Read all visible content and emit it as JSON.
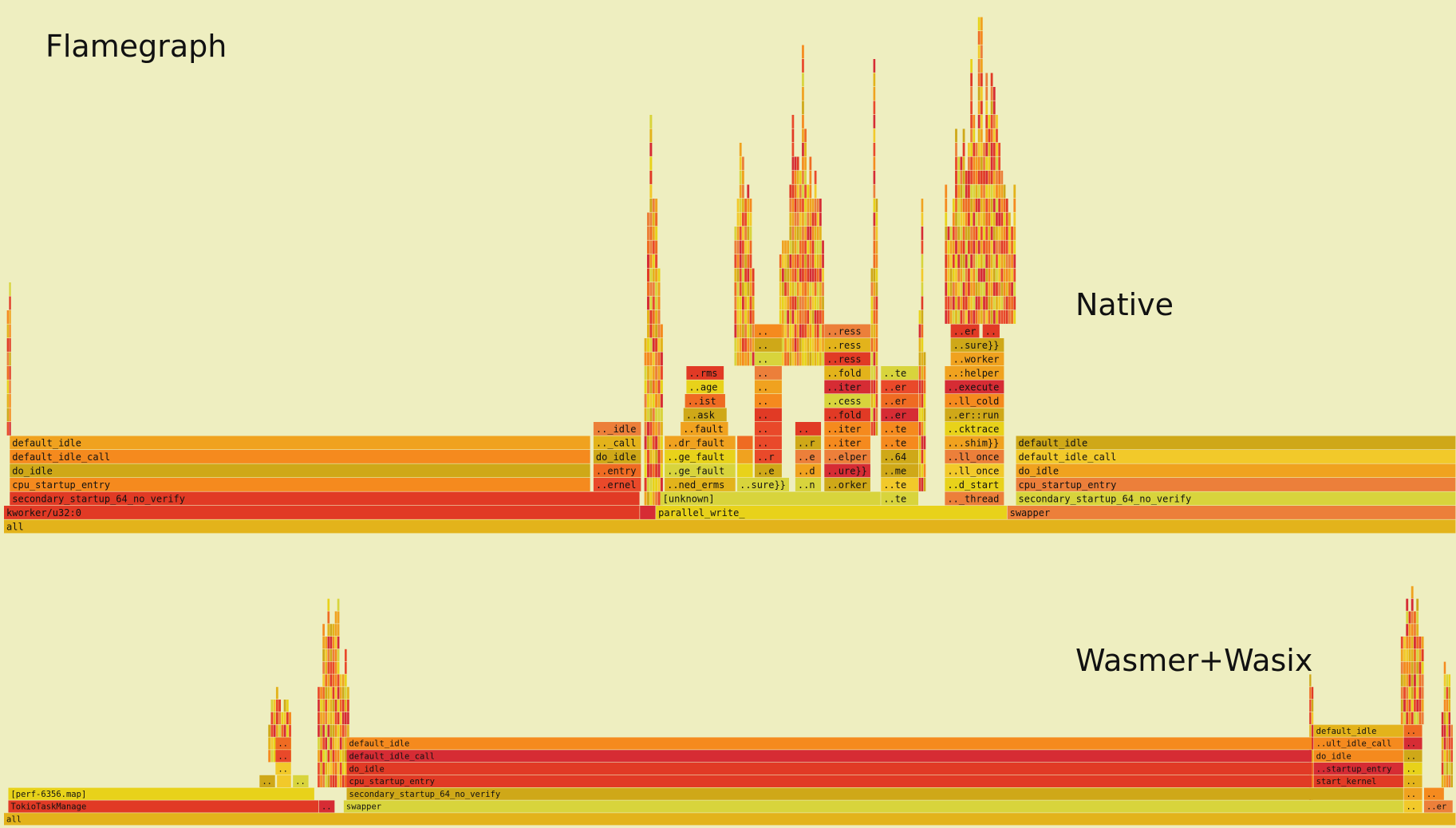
{
  "title": "Flamegraph",
  "chart_data": [
    {
      "type": "flamegraph",
      "name": "Native",
      "notes": "Frame widths are estimated fractions of total samples (0-1); depth 0 = root 'all'. Labels copied exactly as shown (truncated with '..').",
      "frames": [
        {
          "label": "all",
          "depth": 0,
          "start": 0.0,
          "width": 1.0
        },
        {
          "label": "kworker/u32:0",
          "depth": 1,
          "start": 0.0,
          "width": 0.438
        },
        {
          "label": "..",
          "depth": 1,
          "start": 0.438,
          "width": 0.011
        },
        {
          "label": "parallel_write_",
          "depth": 1,
          "start": 0.449,
          "width": 0.242
        },
        {
          "label": "swapper",
          "depth": 1,
          "start": 0.691,
          "width": 0.309
        },
        {
          "label": "secondary_startup_64_no_verify",
          "depth": 2,
          "start": 0.004,
          "width": 0.434
        },
        {
          "label": "[unknown]",
          "depth": 2,
          "start": 0.452,
          "width": 0.152
        },
        {
          "label": "..te",
          "depth": 2,
          "start": 0.604,
          "width": 0.026
        },
        {
          "label": ".._thread",
          "depth": 2,
          "start": 0.648,
          "width": 0.041
        },
        {
          "label": "secondary_startup_64_no_verify",
          "depth": 2,
          "start": 0.697,
          "width": 0.303
        },
        {
          "label": "cpu_startup_entry",
          "depth": 3,
          "start": 0.004,
          "width": 0.4
        },
        {
          "label": "..ernel",
          "depth": 3,
          "start": 0.406,
          "width": 0.033
        },
        {
          "label": "..ned_erms",
          "depth": 3,
          "start": 0.455,
          "width": 0.049
        },
        {
          "label": "..sure}}",
          "depth": 3,
          "start": 0.505,
          "width": 0.036
        },
        {
          "label": "..n",
          "depth": 3,
          "start": 0.545,
          "width": 0.018
        },
        {
          "label": "..orker",
          "depth": 3,
          "start": 0.565,
          "width": 0.032
        },
        {
          "label": "..te",
          "depth": 3,
          "start": 0.604,
          "width": 0.026
        },
        {
          "label": "..d_start",
          "depth": 3,
          "start": 0.648,
          "width": 0.041
        },
        {
          "label": "cpu_startup_entry",
          "depth": 3,
          "start": 0.697,
          "width": 0.303
        },
        {
          "label": "do_idle",
          "depth": 4,
          "start": 0.004,
          "width": 0.4
        },
        {
          "label": "..entry",
          "depth": 4,
          "start": 0.406,
          "width": 0.033
        },
        {
          "label": "..ge_fault",
          "depth": 4,
          "start": 0.455,
          "width": 0.049
        },
        {
          "label": "..",
          "depth": 4,
          "start": 0.505,
          "width": 0.011
        },
        {
          "label": "..e",
          "depth": 4,
          "start": 0.517,
          "width": 0.019
        },
        {
          "label": "..d",
          "depth": 4,
          "start": 0.545,
          "width": 0.018
        },
        {
          "label": "..ure}}",
          "depth": 4,
          "start": 0.565,
          "width": 0.032
        },
        {
          "label": "..me",
          "depth": 4,
          "start": 0.604,
          "width": 0.026
        },
        {
          "label": "..ll_once",
          "depth": 4,
          "start": 0.648,
          "width": 0.041
        },
        {
          "label": "do_idle",
          "depth": 4,
          "start": 0.697,
          "width": 0.303
        },
        {
          "label": "default_idle_call",
          "depth": 5,
          "start": 0.004,
          "width": 0.4
        },
        {
          "label": "do_idle",
          "depth": 5,
          "start": 0.406,
          "width": 0.033
        },
        {
          "label": "..ge_fault",
          "depth": 5,
          "start": 0.455,
          "width": 0.049
        },
        {
          "label": "..",
          "depth": 5,
          "start": 0.505,
          "width": 0.011
        },
        {
          "label": "..r",
          "depth": 5,
          "start": 0.517,
          "width": 0.019
        },
        {
          "label": "..e",
          "depth": 5,
          "start": 0.545,
          "width": 0.018
        },
        {
          "label": "..elper",
          "depth": 5,
          "start": 0.565,
          "width": 0.032
        },
        {
          "label": "..64",
          "depth": 5,
          "start": 0.604,
          "width": 0.026
        },
        {
          "label": "..ll_once",
          "depth": 5,
          "start": 0.648,
          "width": 0.041
        },
        {
          "label": "default_idle_call",
          "depth": 5,
          "start": 0.697,
          "width": 0.303
        },
        {
          "label": "default_idle",
          "depth": 6,
          "start": 0.004,
          "width": 0.4
        },
        {
          "label": ".._call",
          "depth": 6,
          "start": 0.406,
          "width": 0.033
        },
        {
          "label": "..dr_fault",
          "depth": 6,
          "start": 0.455,
          "width": 0.049
        },
        {
          "label": "..",
          "depth": 6,
          "start": 0.505,
          "width": 0.011
        },
        {
          "label": "..",
          "depth": 6,
          "start": 0.517,
          "width": 0.019
        },
        {
          "label": "..r",
          "depth": 6,
          "start": 0.545,
          "width": 0.018
        },
        {
          "label": "..iter",
          "depth": 6,
          "start": 0.565,
          "width": 0.032
        },
        {
          "label": "..te",
          "depth": 6,
          "start": 0.604,
          "width": 0.026
        },
        {
          "label": "...shim}}",
          "depth": 6,
          "start": 0.648,
          "width": 0.041
        },
        {
          "label": "default_idle",
          "depth": 6,
          "start": 0.697,
          "width": 0.303
        },
        {
          "label": ".._idle",
          "depth": 7,
          "start": 0.406,
          "width": 0.033
        },
        {
          "label": "..fault",
          "depth": 7,
          "start": 0.466,
          "width": 0.033
        },
        {
          "label": "..",
          "depth": 7,
          "start": 0.517,
          "width": 0.019
        },
        {
          "label": "..",
          "depth": 7,
          "start": 0.545,
          "width": 0.018
        },
        {
          "label": "..iter",
          "depth": 7,
          "start": 0.565,
          "width": 0.032
        },
        {
          "label": "..te",
          "depth": 7,
          "start": 0.604,
          "width": 0.026
        },
        {
          "label": "..cktrace",
          "depth": 7,
          "start": 0.648,
          "width": 0.041
        },
        {
          "label": "..ask",
          "depth": 8,
          "start": 0.468,
          "width": 0.03
        },
        {
          "label": "..",
          "depth": 8,
          "start": 0.517,
          "width": 0.019
        },
        {
          "label": "..fold",
          "depth": 8,
          "start": 0.565,
          "width": 0.032
        },
        {
          "label": "..er",
          "depth": 8,
          "start": 0.604,
          "width": 0.026
        },
        {
          "label": "..er::run",
          "depth": 8,
          "start": 0.648,
          "width": 0.041
        },
        {
          "label": "..ist",
          "depth": 9,
          "start": 0.469,
          "width": 0.028
        },
        {
          "label": "..",
          "depth": 9,
          "start": 0.517,
          "width": 0.019
        },
        {
          "label": "..cess",
          "depth": 9,
          "start": 0.565,
          "width": 0.032
        },
        {
          "label": "..er",
          "depth": 9,
          "start": 0.604,
          "width": 0.026
        },
        {
          "label": "..ll_cold",
          "depth": 9,
          "start": 0.648,
          "width": 0.041
        },
        {
          "label": "..age",
          "depth": 10,
          "start": 0.47,
          "width": 0.026
        },
        {
          "label": "..",
          "depth": 10,
          "start": 0.517,
          "width": 0.019
        },
        {
          "label": "..iter",
          "depth": 10,
          "start": 0.565,
          "width": 0.032
        },
        {
          "label": "..er",
          "depth": 10,
          "start": 0.604,
          "width": 0.026
        },
        {
          "label": "..execute",
          "depth": 10,
          "start": 0.648,
          "width": 0.041
        },
        {
          "label": "..rms",
          "depth": 11,
          "start": 0.47,
          "width": 0.026
        },
        {
          "label": "..",
          "depth": 11,
          "start": 0.517,
          "width": 0.019
        },
        {
          "label": "..fold",
          "depth": 11,
          "start": 0.565,
          "width": 0.032
        },
        {
          "label": "..te",
          "depth": 11,
          "start": 0.604,
          "width": 0.026
        },
        {
          "label": "..:helper",
          "depth": 11,
          "start": 0.648,
          "width": 0.041
        },
        {
          "label": "..",
          "depth": 12,
          "start": 0.517,
          "width": 0.019
        },
        {
          "label": "..ress",
          "depth": 12,
          "start": 0.565,
          "width": 0.032
        },
        {
          "label": "..worker",
          "depth": 12,
          "start": 0.652,
          "width": 0.037
        },
        {
          "label": "..",
          "depth": 13,
          "start": 0.517,
          "width": 0.019
        },
        {
          "label": "..ress",
          "depth": 13,
          "start": 0.565,
          "width": 0.032
        },
        {
          "label": "..sure}}",
          "depth": 13,
          "start": 0.652,
          "width": 0.037
        },
        {
          "label": "..",
          "depth": 14,
          "start": 0.517,
          "width": 0.019
        },
        {
          "label": "..ress",
          "depth": 14,
          "start": 0.565,
          "width": 0.032
        },
        {
          "label": "..er",
          "depth": 14,
          "start": 0.652,
          "width": 0.02
        },
        {
          "label": "..",
          "depth": 14,
          "start": 0.674,
          "width": 0.012
        }
      ],
      "peaks": [
        {
          "start": 0.002,
          "width": 0.003,
          "depth_min": 7,
          "depth_max": 24
        },
        {
          "start": 0.441,
          "width": 0.013,
          "depth_min": 2,
          "depth_max": 38
        },
        {
          "start": 0.503,
          "width": 0.014,
          "depth_min": 12,
          "depth_max": 33
        },
        {
          "start": 0.534,
          "width": 0.031,
          "depth_min": 12,
          "depth_max": 35
        },
        {
          "start": 0.597,
          "width": 0.005,
          "depth_min": 7,
          "depth_max": 36
        },
        {
          "start": 0.63,
          "width": 0.005,
          "depth_min": 3,
          "depth_max": 25
        },
        {
          "start": 0.648,
          "width": 0.049,
          "depth_min": 15,
          "depth_max": 37
        }
      ]
    },
    {
      "type": "flamegraph",
      "name": "Wasmer+Wasix",
      "frames": [
        {
          "label": "all",
          "depth": 0,
          "start": 0.0,
          "width": 1.0
        },
        {
          "label": "TokioTaskManage",
          "depth": 1,
          "start": 0.003,
          "width": 0.214
        },
        {
          "label": "..",
          "depth": 1,
          "start": 0.217,
          "width": 0.011
        },
        {
          "label": "swapper",
          "depth": 1,
          "start": 0.234,
          "width": 0.73
        },
        {
          "label": "..",
          "depth": 1,
          "start": 0.964,
          "width": 0.013
        },
        {
          "label": "..er",
          "depth": 1,
          "start": 0.978,
          "width": 0.02
        },
        {
          "label": "[perf-6356.map]",
          "depth": 2,
          "start": 0.003,
          "width": 0.211
        },
        {
          "label": "secondary_startup_64_no_verify",
          "depth": 2,
          "start": 0.236,
          "width": 0.728
        },
        {
          "label": "..",
          "depth": 2,
          "start": 0.964,
          "width": 0.013
        },
        {
          "label": "..",
          "depth": 2,
          "start": 0.978,
          "width": 0.014
        },
        {
          "label": "..",
          "depth": 3,
          "start": 0.176,
          "width": 0.011
        },
        {
          "label": "..",
          "depth": 3,
          "start": 0.188,
          "width": 0.01
        },
        {
          "label": "..",
          "depth": 3,
          "start": 0.199,
          "width": 0.011
        },
        {
          "label": "cpu_startup_entry",
          "depth": 3,
          "start": 0.236,
          "width": 0.665
        },
        {
          "label": "start_kernel",
          "depth": 3,
          "start": 0.902,
          "width": 0.062
        },
        {
          "label": "..",
          "depth": 3,
          "start": 0.964,
          "width": 0.013
        },
        {
          "label": "..",
          "depth": 4,
          "start": 0.187,
          "width": 0.011
        },
        {
          "label": "do_idle",
          "depth": 4,
          "start": 0.236,
          "width": 0.665
        },
        {
          "label": "..startup_entry",
          "depth": 4,
          "start": 0.902,
          "width": 0.062
        },
        {
          "label": "..",
          "depth": 4,
          "start": 0.964,
          "width": 0.013
        },
        {
          "label": "..",
          "depth": 5,
          "start": 0.187,
          "width": 0.011
        },
        {
          "label": "default_idle_call",
          "depth": 5,
          "start": 0.236,
          "width": 0.665
        },
        {
          "label": "do_idle",
          "depth": 5,
          "start": 0.902,
          "width": 0.062
        },
        {
          "label": "..",
          "depth": 5,
          "start": 0.964,
          "width": 0.013
        },
        {
          "label": "..",
          "depth": 6,
          "start": 0.187,
          "width": 0.011
        },
        {
          "label": "default_idle",
          "depth": 6,
          "start": 0.236,
          "width": 0.665
        },
        {
          "label": "..ult_idle_call",
          "depth": 6,
          "start": 0.902,
          "width": 0.062
        },
        {
          "label": "..",
          "depth": 6,
          "start": 0.964,
          "width": 0.013
        },
        {
          "label": "default_idle",
          "depth": 7,
          "start": 0.902,
          "width": 0.062
        },
        {
          "label": "..",
          "depth": 7,
          "start": 0.964,
          "width": 0.013
        }
      ],
      "peaks": [
        {
          "start": 0.182,
          "width": 0.016,
          "depth_min": 5,
          "depth_max": 12
        },
        {
          "start": 0.216,
          "width": 0.022,
          "depth_min": 3,
          "depth_max": 22
        },
        {
          "start": 0.899,
          "width": 0.003,
          "depth_min": 2,
          "depth_max": 17
        },
        {
          "start": 0.962,
          "width": 0.016,
          "depth_min": 8,
          "depth_max": 22
        },
        {
          "start": 0.99,
          "width": 0.008,
          "depth_min": 3,
          "depth_max": 15
        }
      ]
    }
  ],
  "panels": {
    "native": {
      "label": "Native"
    },
    "wasm": {
      "label": "Wasmer+Wasix"
    }
  },
  "colors": {
    "background": "#eeeec0",
    "palette": [
      "#e8d21a",
      "#e3b31b",
      "#f0a21f",
      "#f58a1e",
      "#ef6b22",
      "#e9492a",
      "#e13a25",
      "#d62c34",
      "#cfa818",
      "#f2c92a",
      "#d8d43c",
      "#ec7f3a"
    ]
  }
}
